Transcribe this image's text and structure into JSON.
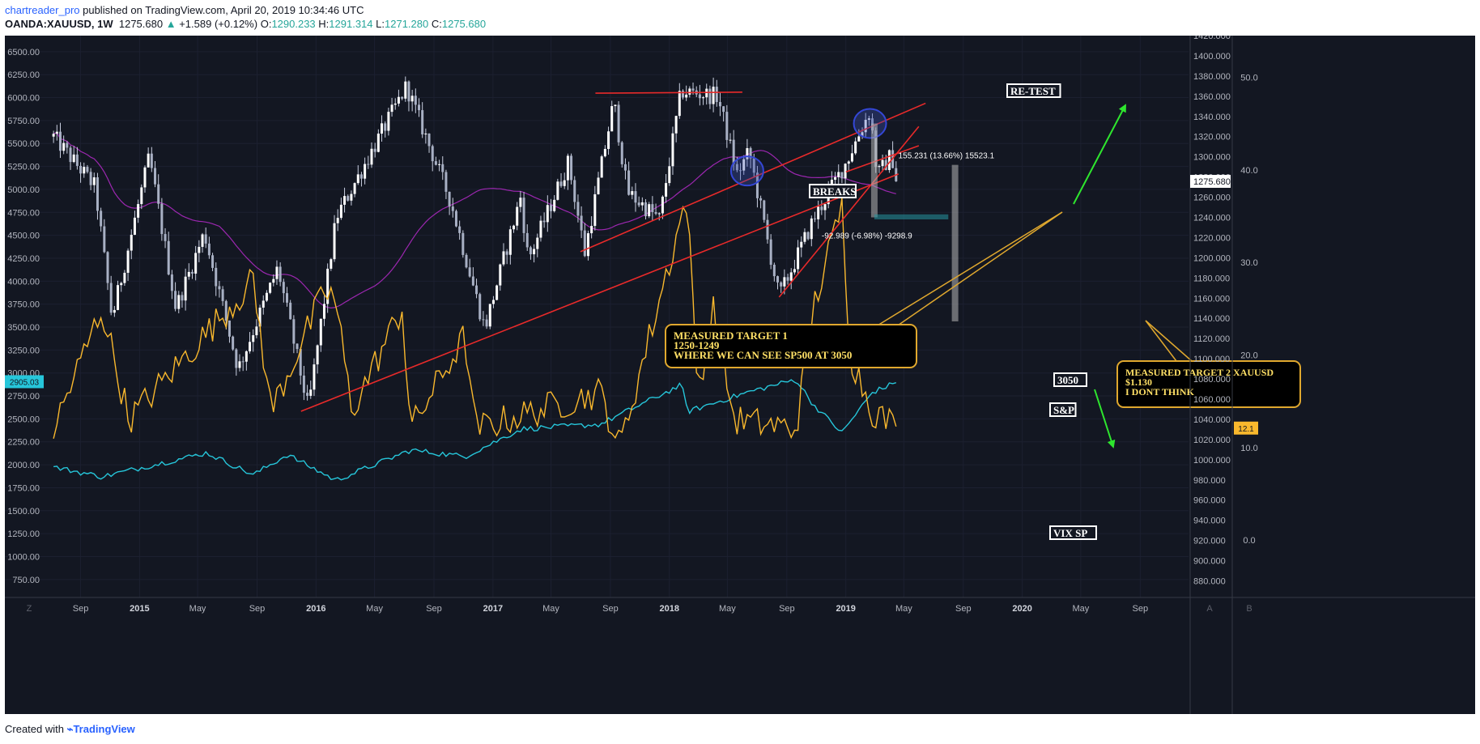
{
  "header": {
    "author": "chartreader_pro",
    "published": " published on TradingView.com, April 20, 2019 10:34:46 UTC",
    "symbol": "OANDA:XAUUSD, 1W",
    "last": "1275.680",
    "change_arrow": "▲",
    "change": "+1.589 (+0.12%)",
    "o_label": "O:",
    "o_val": "1290.233",
    "h_label": "H:",
    "h_val": "1291.314",
    "l_label": "L:",
    "l_val": "1271.280",
    "c_label": "C:",
    "c_val": "1275.680"
  },
  "footer": {
    "created_with": "Created with",
    "brand": "TradingView"
  },
  "colors": {
    "background": "#131722",
    "candle": "#c9cfe0",
    "ma": "#9c27b0",
    "trend": "#e82a2a",
    "sp500": "#26c6da",
    "vix": "#f9b82d",
    "callout_border": "#e0a82e",
    "callout_text": "#ffe066",
    "arrow": "#2ee62e"
  },
  "chart_data": [
    {
      "type": "candlestick",
      "series_name": "OANDA:XAUUSD 1W",
      "axis": "right-inner",
      "ylim": [
        870,
        1420
      ],
      "y_ticks": [
        880,
        900,
        920,
        940,
        960,
        980,
        1000,
        1020,
        1040,
        1060,
        1080,
        1100,
        1120,
        1140,
        1160,
        1180,
        1200,
        1220,
        1240,
        1260,
        1280,
        1300,
        1320,
        1340,
        1360,
        1380,
        1400,
        1420
      ],
      "last_price": "1275.680",
      "anchors": [
        [
          "2014-07-07",
          1320
        ],
        [
          "2014-10-01",
          1270
        ],
        [
          "2014-11-05",
          1140
        ],
        [
          "2015-01-21",
          1300
        ],
        [
          "2015-03-17",
          1150
        ],
        [
          "2015-05-15",
          1225
        ],
        [
          "2015-07-24",
          1090
        ],
        [
          "2015-10-14",
          1190
        ],
        [
          "2015-12-16",
          1050
        ],
        [
          "2016-02-12",
          1240
        ],
        [
          "2016-07-06",
          1370
        ],
        [
          "2016-10-06",
          1255
        ],
        [
          "2016-12-15",
          1130
        ],
        [
          "2017-02-27",
          1260
        ],
        [
          "2017-03-15",
          1198
        ],
        [
          "2017-06-06",
          1295
        ],
        [
          "2017-07-10",
          1205
        ],
        [
          "2017-09-08",
          1355
        ],
        [
          "2017-10-06",
          1265
        ],
        [
          "2017-12-12",
          1238
        ],
        [
          "2018-01-25",
          1365
        ],
        [
          "2018-04-11",
          1360
        ],
        [
          "2018-05-21",
          1283
        ],
        [
          "2018-06-15",
          1305
        ],
        [
          "2018-08-16",
          1161
        ],
        [
          "2018-10-26",
          1238
        ],
        [
          "2019-01-02",
          1295
        ],
        [
          "2019-02-20",
          1346
        ],
        [
          "2019-03-07",
          1281
        ],
        [
          "2019-04-05",
          1302
        ],
        [
          "2019-04-20",
          1275.68
        ]
      ],
      "moving_average_color": "#9c27b0"
    },
    {
      "type": "line",
      "series_name": "S&P",
      "axis": "left",
      "ylim": [
        625,
        6675
      ],
      "y_ticks": [
        750,
        1000,
        1250,
        1500,
        1750,
        2000,
        2250,
        2500,
        2750,
        3000,
        3250,
        3500,
        3750,
        4000,
        4250,
        4500,
        4750,
        5000,
        5250,
        5500,
        5750,
        6000,
        6250,
        6500
      ],
      "last_value": "2905.03",
      "anchors": [
        [
          "2014-07-07",
          1975
        ],
        [
          "2014-10-15",
          1870
        ],
        [
          "2015-05-20",
          2130
        ],
        [
          "2015-08-24",
          1890
        ],
        [
          "2015-11-03",
          2110
        ],
        [
          "2016-02-11",
          1830
        ],
        [
          "2016-07-15",
          2160
        ],
        [
          "2016-11-04",
          2090
        ],
        [
          "2017-03-01",
          2390
        ],
        [
          "2017-08-10",
          2440
        ],
        [
          "2018-01-26",
          2870
        ],
        [
          "2018-02-08",
          2580
        ],
        [
          "2018-06-12",
          2790
        ],
        [
          "2018-09-20",
          2930
        ],
        [
          "2018-10-25",
          2660
        ],
        [
          "2018-12-24",
          2350
        ],
        [
          "2019-02-25",
          2790
        ],
        [
          "2019-04-20",
          2905
        ]
      ]
    },
    {
      "type": "line",
      "series_name": "VIX SP",
      "axis": "right-outer",
      "ylim": [
        -5.5,
        54.5
      ],
      "y_ticks": [
        0,
        10,
        20,
        30,
        40,
        50
      ],
      "last_value": "12.1",
      "anchors": [
        [
          "2014-07-07",
          12
        ],
        [
          "2014-10-15",
          25
        ],
        [
          "2014-12-10",
          13
        ],
        [
          "2015-08-24",
          28
        ],
        [
          "2015-09-30",
          14
        ],
        [
          "2016-01-20",
          27
        ],
        [
          "2016-02-10",
          26
        ],
        [
          "2016-03-15",
          14
        ],
        [
          "2016-06-27",
          25
        ],
        [
          "2016-07-15",
          12
        ],
        [
          "2016-11-04",
          22
        ],
        [
          "2016-11-25",
          12
        ],
        [
          "2017-08-11",
          16
        ],
        [
          "2017-09-20",
          10
        ],
        [
          "2018-02-06",
          37
        ],
        [
          "2018-03-01",
          16
        ],
        [
          "2018-04-02",
          25
        ],
        [
          "2018-05-15",
          13
        ],
        [
          "2018-09-20",
          12
        ],
        [
          "2018-10-25",
          25
        ],
        [
          "2018-12-24",
          36
        ],
        [
          "2019-01-10",
          20
        ],
        [
          "2019-02-25",
          14
        ],
        [
          "2019-04-20",
          12.1
        ]
      ]
    }
  ],
  "x_axis": {
    "ticks": [
      {
        "date": "2014-09-01",
        "label": "Sep",
        "major": false
      },
      {
        "date": "2015-01-01",
        "label": "2015",
        "major": true
      },
      {
        "date": "2015-05-01",
        "label": "May",
        "major": false
      },
      {
        "date": "2015-09-01",
        "label": "Sep",
        "major": false
      },
      {
        "date": "2016-01-01",
        "label": "2016",
        "major": true
      },
      {
        "date": "2016-05-01",
        "label": "May",
        "major": false
      },
      {
        "date": "2016-09-01",
        "label": "Sep",
        "major": false
      },
      {
        "date": "2017-01-01",
        "label": "2017",
        "major": true
      },
      {
        "date": "2017-05-01",
        "label": "May",
        "major": false
      },
      {
        "date": "2017-09-01",
        "label": "Sep",
        "major": false
      },
      {
        "date": "2018-01-01",
        "label": "2018",
        "major": true
      },
      {
        "date": "2018-05-01",
        "label": "May",
        "major": false
      },
      {
        "date": "2018-09-01",
        "label": "Sep",
        "major": false
      },
      {
        "date": "2019-01-01",
        "label": "2019",
        "major": true
      },
      {
        "date": "2019-05-01",
        "label": "May",
        "major": false
      },
      {
        "date": "2019-09-01",
        "label": "Sep",
        "major": false
      },
      {
        "date": "2020-01-01",
        "label": "2020",
        "major": true
      },
      {
        "date": "2020-05-01",
        "label": "May",
        "major": false
      },
      {
        "date": "2020-09-01",
        "label": "Sep",
        "major": false
      }
    ],
    "corner_left": "Z",
    "corner_mid": "A",
    "corner_right": "B"
  },
  "drawings": {
    "resistance": {
      "from": [
        "2017-08-01",
        1363
      ],
      "to": [
        "2018-06-01",
        1364
      ]
    },
    "trendlines": [
      {
        "from": [
          "2015-12-01",
          1048
        ],
        "to": [
          "2019-04-20",
          1283
        ]
      },
      {
        "from": [
          "2017-07-01",
          1206
        ],
        "to": [
          "2019-06-15",
          1353
        ]
      },
      {
        "from": [
          "2018-08-16",
          1161
        ],
        "to": [
          "2019-06-01",
          1330
        ]
      },
      {
        "from": [
          "2019-01-01",
          1285
        ],
        "to": [
          "2019-06-01",
          1311
        ]
      }
    ],
    "circles": [
      {
        "center": [
          "2018-06-11",
          1286
        ]
      },
      {
        "center": [
          "2019-02-20",
          1333
        ]
      }
    ],
    "labels": {
      "retest": "RE-TEST",
      "breaks": "BREAKS",
      "target_3050": "3050",
      "sp": "S&P",
      "vix": "VIX SP"
    },
    "measure_up": {
      "text": "155.231 (13.66%) 15523.1",
      "date": "2019-08-15",
      "from": 1137,
      "to": 1292
    },
    "measure_down": {
      "text": "-92.989 (-6.98%) -9298.9",
      "date": "2019-03-01",
      "from": 1333,
      "to": 1240
    },
    "box": {
      "from": [
        "2019-03-01",
        1243
      ],
      "to": [
        "2019-08-01",
        1238
      ]
    },
    "callout1": [
      "MEASURED TARGET 1",
      "1250-1249",
      "WHERE WE CAN SEE  SP500 AT 3050"
    ],
    "callout2": [
      "MEASURED TARGET 2 XAUUSD",
      "$1.130",
      "I DONT THINK"
    ]
  }
}
